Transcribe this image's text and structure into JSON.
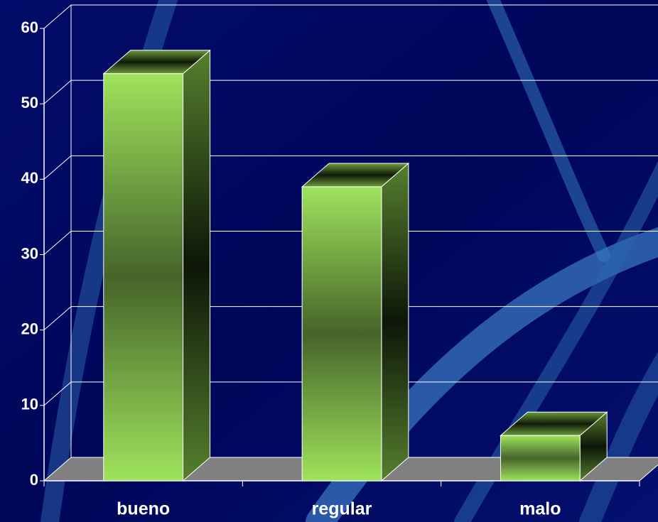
{
  "chart_data": {
    "type": "bar3d",
    "categories": [
      "bueno",
      "regular",
      "malo"
    ],
    "values": [
      54,
      39,
      6
    ],
    "color": "#9be05a",
    "ylim": [
      0,
      60
    ],
    "yticks": [
      0,
      10,
      20,
      30,
      40,
      50,
      60
    ],
    "grid": true
  }
}
